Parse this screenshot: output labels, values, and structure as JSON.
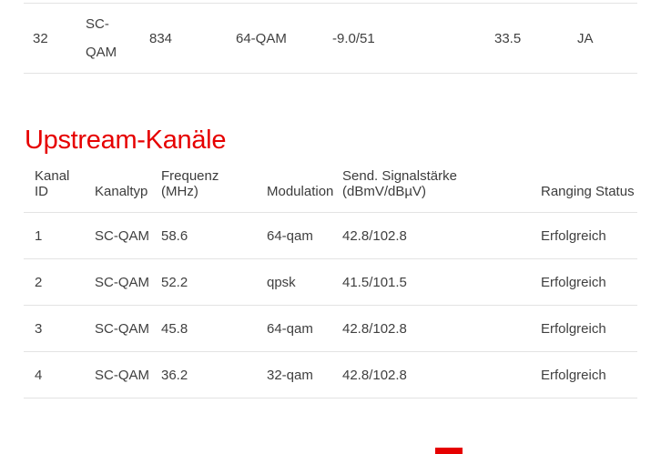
{
  "page": {
    "background": "#ffffff",
    "text_color": "#404040",
    "border_color": "#e3e3e3",
    "accent_red": "#e60000"
  },
  "downstream_partial_row": {
    "kanal_id": "32",
    "kanaltyp": "SC-QAM",
    "frequenz": "834",
    "modulation": "64-QAM",
    "signalstaerke": "-9.0/51",
    "snr": "33.5",
    "lock_status": "JA"
  },
  "upstream": {
    "title": "Upstream-Kanäle",
    "columns": [
      "Kanal ID",
      "Kanaltyp",
      "Frequenz (MHz)",
      "Modulation",
      "Send. Signalstärke (dBmV/dBµV)",
      "Ranging Status"
    ],
    "rows": [
      [
        "1",
        "SC-QAM",
        "58.6",
        "64-qam",
        "42.8/102.8",
        "Erfolgreich"
      ],
      [
        "2",
        "SC-QAM",
        "52.2",
        "qpsk",
        "41.5/101.5",
        "Erfolgreich"
      ],
      [
        "3",
        "SC-QAM",
        "45.8",
        "64-qam",
        "42.8/102.8",
        "Erfolgreich"
      ],
      [
        "4",
        "SC-QAM",
        "36.2",
        "32-qam",
        "42.8/102.8",
        "Erfolgreich"
      ]
    ]
  }
}
